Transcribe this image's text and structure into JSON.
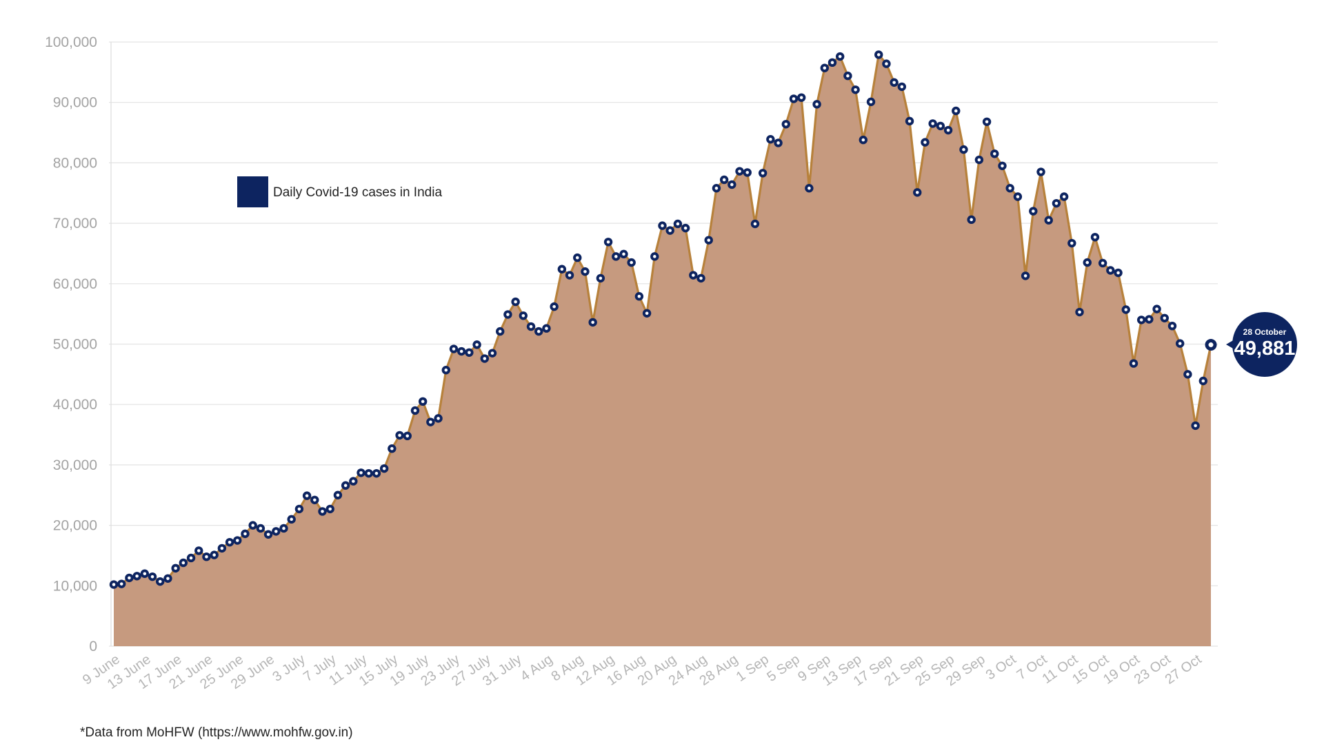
{
  "chart_data": {
    "type": "area",
    "legend": {
      "label": "Daily Covid-19 cases in India",
      "placement": "top-left",
      "color": "#0d2460"
    },
    "ylim": [
      0,
      100000
    ],
    "yticks": [
      "0",
      "10,000",
      "20,000",
      "30,000",
      "40,000",
      "50,000",
      "60,000",
      "70,000",
      "80,000",
      "90,000",
      "100,000"
    ],
    "x_tick_labels": [
      "9 June",
      "13 June",
      "17 June",
      "21 June",
      "25 June",
      "29 June",
      "3 July",
      "7 July",
      "11 July",
      "15 July",
      "19 July",
      "23 July",
      "27 July",
      "31 July",
      "4 Aug",
      "8 Aug",
      "12 Aug",
      "16 Aug",
      "20 Aug",
      "24 Aug",
      "28 Aug",
      "1 Sep",
      "5 Sep",
      "9 Sep",
      "13 Sep",
      "17 Sep",
      "21 Sep",
      "25 Sep",
      "29 Sep",
      "3 Oct",
      "7 Oct",
      "11 Oct",
      "15 Oct",
      "19 Oct",
      "23 Oct",
      "27 Oct"
    ],
    "series": [
      {
        "name": "Daily Covid-19 cases in India",
        "x_start": "9 June",
        "x_end": "28 October",
        "values": [
          10200,
          10300,
          11300,
          11600,
          12000,
          11500,
          10700,
          11200,
          12900,
          13800,
          14600,
          15800,
          14800,
          15100,
          16200,
          17200,
          17500,
          18600,
          20000,
          19500,
          18500,
          19000,
          19500,
          21000,
          22700,
          24900,
          24200,
          22300,
          22700,
          25000,
          26600,
          27300,
          28700,
          28600,
          28600,
          29400,
          32700,
          34900,
          34800,
          39000,
          40500,
          37100,
          37700,
          45700,
          49200,
          48800,
          48600,
          49900,
          47600,
          48500,
          52100,
          54900,
          57000,
          54700,
          52900,
          52100,
          52600,
          56200,
          62400,
          61400,
          64300,
          62000,
          53600,
          60900,
          66900,
          64500,
          64900,
          63500,
          57900,
          55100,
          64500,
          69600,
          68800,
          69900,
          69200,
          61400,
          60900,
          67200,
          75800,
          77200,
          76400,
          78600,
          78400,
          69900,
          78300,
          83900,
          83300,
          86400,
          90600,
          90800,
          75800,
          89700,
          95700,
          96600,
          97600,
          94400,
          92100,
          83800,
          90100,
          97900,
          96400,
          93300,
          92600,
          86900,
          75100,
          83400,
          86500,
          86100,
          85400,
          88600,
          82200,
          70600,
          80500,
          86800,
          81500,
          79500,
          75800,
          74400,
          61300,
          72000,
          78500,
          70500,
          73300,
          74400,
          66700,
          55300,
          63500,
          67700,
          63400,
          62200,
          61800,
          55700,
          46800,
          54000,
          54100,
          55800,
          54300,
          53000,
          50100,
          45000,
          36500,
          43900,
          49881
        ]
      }
    ],
    "callout": {
      "date": "28 October",
      "value": "49,881",
      "color": "#0d2460"
    },
    "area_color": "#c69a7f",
    "line_color": "#b7813b",
    "marker_color": "#0d2460",
    "grid": true
  },
  "footer": {
    "source": "*Data from MoHFW (https://www.mohfw.gov.in)"
  }
}
